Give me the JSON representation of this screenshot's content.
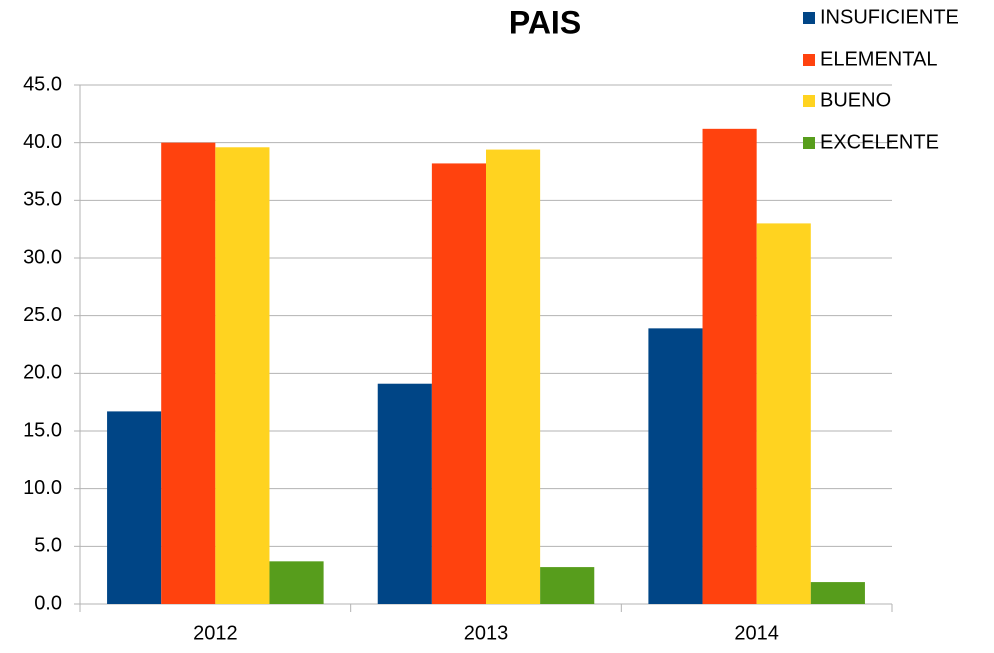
{
  "chart_data": {
    "type": "bar",
    "title": "PAIS",
    "categories": [
      "2012",
      "2013",
      "2014"
    ],
    "series": [
      {
        "name": "INSUFICIENTE",
        "color": "#004586",
        "values": [
          16.7,
          19.1,
          23.9
        ]
      },
      {
        "name": "ELEMENTAL",
        "color": "#ff420e",
        "values": [
          40.0,
          38.2,
          41.2
        ]
      },
      {
        "name": "BUENO",
        "color": "#ffd320",
        "values": [
          39.6,
          39.4,
          33.0
        ]
      },
      {
        "name": "EXCELENTE",
        "color": "#579d1c",
        "values": [
          3.7,
          3.2,
          1.9
        ]
      }
    ],
    "ylim": [
      0,
      45
    ],
    "yticks": [
      {
        "value": 0,
        "label": "0.0"
      },
      {
        "value": 5,
        "label": "5.0"
      },
      {
        "value": 10,
        "label": "10.0"
      },
      {
        "value": 15,
        "label": "15.0"
      },
      {
        "value": 20,
        "label": "20.0"
      },
      {
        "value": 25,
        "label": "25.0"
      },
      {
        "value": 30,
        "label": "30.0"
      },
      {
        "value": 35,
        "label": "35.0"
      },
      {
        "value": 40,
        "label": "40.0"
      },
      {
        "value": 45,
        "label": "45.0"
      }
    ],
    "grid": true,
    "legend": "top-right"
  }
}
